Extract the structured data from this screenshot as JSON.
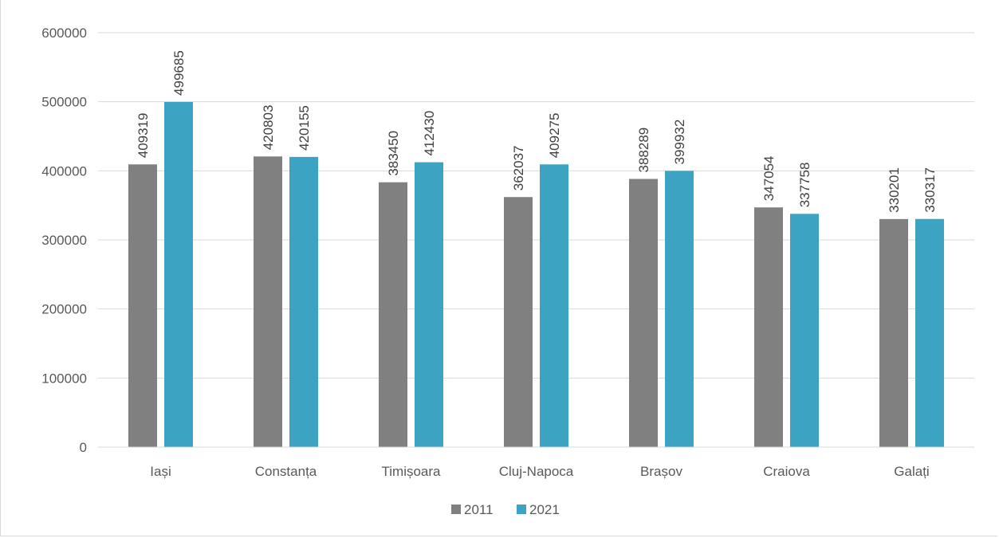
{
  "chart_data": {
    "type": "bar",
    "categories": [
      "Iași",
      "Constanța",
      "Timișoara",
      "Cluj-Napoca",
      "Brașov",
      "Craiova",
      "Galați"
    ],
    "series": [
      {
        "name": "2011",
        "color": "#808080",
        "values": [
          409319,
          420803,
          383450,
          362037,
          388289,
          347054,
          330201
        ]
      },
      {
        "name": "2021",
        "color": "#3ca3c2",
        "values": [
          499685,
          420155,
          412430,
          409275,
          399932,
          337758,
          330317
        ]
      }
    ],
    "ylim": [
      0,
      600000
    ],
    "yticks": [
      0,
      100000,
      200000,
      300000,
      400000,
      500000,
      600000
    ],
    "ytick_labels": [
      "0",
      "100000",
      "200000",
      "300000",
      "400000",
      "500000",
      "600000"
    ],
    "grid": true,
    "legend": "bottom-center",
    "data_labels": true,
    "data_label_orientation": "vertical"
  }
}
